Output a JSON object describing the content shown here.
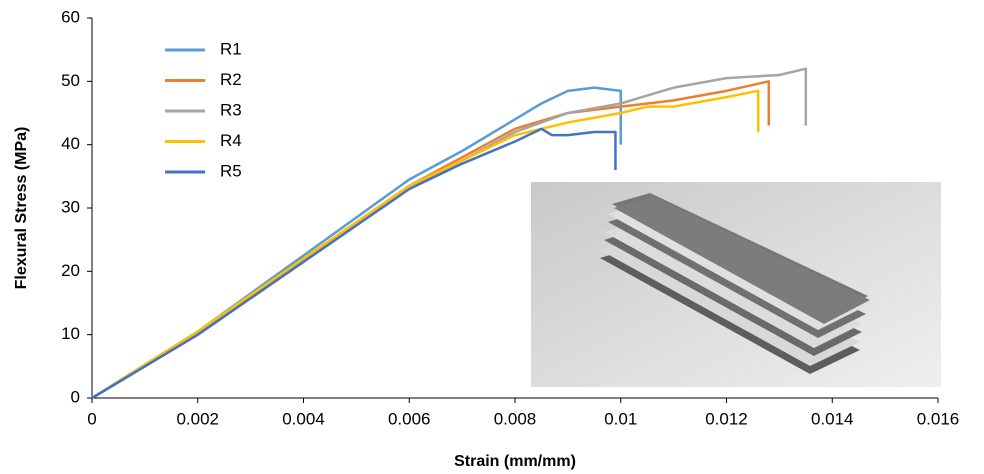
{
  "chart_data": {
    "type": "line",
    "x_label": "Strain (mm/mm)",
    "y_label": "Flexural Stress (MPa)",
    "xlim": [
      0,
      0.016
    ],
    "xticks": [
      0,
      0.002,
      0.004,
      0.006,
      0.008,
      0.01,
      0.012,
      0.014,
      0.016
    ],
    "ylim": [
      0,
      60
    ],
    "yticks": [
      0,
      10,
      20,
      30,
      40,
      50,
      60
    ],
    "grid": false,
    "legend": "upper left",
    "series": [
      {
        "name": "R1",
        "color": "#5b9bd5",
        "x": [
          0,
          0.002,
          0.004,
          0.006,
          0.007,
          0.008,
          0.0085,
          0.009,
          0.0095,
          0.01,
          0.01
        ],
        "values": [
          0,
          10.5,
          22.5,
          34.5,
          39,
          44,
          46.5,
          48.5,
          49,
          48.5,
          40
        ]
      },
      {
        "name": "R2",
        "color": "#ed7d31",
        "x": [
          0,
          0.002,
          0.004,
          0.006,
          0.007,
          0.008,
          0.009,
          0.01,
          0.011,
          0.012,
          0.0128,
          0.0128
        ],
        "values": [
          0,
          10,
          22,
          33.5,
          38,
          42.5,
          45,
          46,
          47,
          48.5,
          50,
          43
        ]
      },
      {
        "name": "R3",
        "color": "#a5a5a5",
        "x": [
          0,
          0.002,
          0.004,
          0.006,
          0.007,
          0.008,
          0.009,
          0.01,
          0.011,
          0.012,
          0.013,
          0.0135,
          0.0135
        ],
        "values": [
          0,
          10,
          21.5,
          33,
          37.5,
          42,
          45,
          46.5,
          49,
          50.5,
          51,
          52,
          43
        ]
      },
      {
        "name": "R4",
        "color": "#ffc000",
        "x": [
          0,
          0.002,
          0.004,
          0.006,
          0.007,
          0.008,
          0.009,
          0.01,
          0.0105,
          0.011,
          0.012,
          0.0126,
          0.0126
        ],
        "values": [
          0,
          10.5,
          22,
          33.5,
          37.5,
          41.5,
          43.5,
          45,
          46,
          46,
          47.5,
          48.5,
          42
        ]
      },
      {
        "name": "R5",
        "color": "#4472c4",
        "x": [
          0,
          0.002,
          0.004,
          0.006,
          0.007,
          0.008,
          0.0085,
          0.0087,
          0.009,
          0.0095,
          0.0099,
          0.0099
        ],
        "values": [
          0,
          10,
          21.5,
          33,
          37,
          40.5,
          42.5,
          41.5,
          41.5,
          42,
          42,
          36
        ]
      }
    ]
  }
}
